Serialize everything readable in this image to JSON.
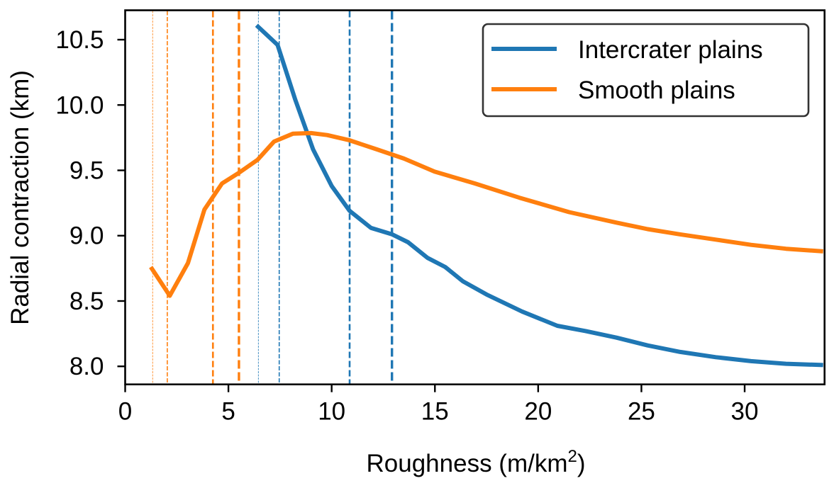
{
  "chart_data": {
    "type": "line",
    "title": "",
    "xlabel": "Roughness (m/km",
    "xlabel_sup": "2",
    "xlabel_close": ")",
    "ylabel": "Radial contraction (km)",
    "xlim": [
      0,
      33.87
    ],
    "ylim": [
      7.862,
      10.725
    ],
    "xticks": [
      0,
      5,
      10,
      15,
      20,
      25,
      30
    ],
    "xtick_labels": [
      "0",
      "5",
      "10",
      "15",
      "20",
      "25",
      "30"
    ],
    "yticks": [
      8.0,
      8.5,
      9.0,
      9.5,
      10.0,
      10.5
    ],
    "ytick_labels": [
      "8.0",
      "8.5",
      "9.0",
      "9.5",
      "10.0",
      "10.5"
    ],
    "grid": false,
    "legend_position": "top-right",
    "series": [
      {
        "name": "Intercrater plains",
        "color": "#1f77b4",
        "x": [
          6.36,
          7.38,
          8.24,
          9.1,
          10.0,
          10.87,
          11.9,
          12.93,
          13.7,
          14.64,
          15.5,
          16.36,
          17.5,
          19.22,
          20.93,
          22.3,
          23.79,
          25.3,
          26.88,
          28.6,
          30.31,
          32.0,
          33.8
        ],
        "y": [
          10.61,
          10.46,
          10.04,
          9.66,
          9.38,
          9.19,
          9.06,
          9.01,
          8.95,
          8.83,
          8.76,
          8.65,
          8.55,
          8.42,
          8.31,
          8.27,
          8.22,
          8.16,
          8.11,
          8.07,
          8.04,
          8.02,
          8.01
        ]
      },
      {
        "name": "Smooth plains",
        "color": "#ff7f0e",
        "x": [
          1.24,
          2.16,
          3.04,
          3.84,
          4.69,
          5.5,
          6.41,
          7.21,
          8.12,
          9.0,
          9.78,
          10.87,
          12.2,
          13.5,
          14.98,
          16.93,
          19.1,
          21.5,
          23.79,
          25.3,
          26.88,
          28.6,
          30.31,
          32.0,
          33.8
        ],
        "y": [
          8.76,
          8.54,
          8.79,
          9.2,
          9.4,
          9.48,
          9.58,
          9.72,
          9.78,
          9.785,
          9.77,
          9.73,
          9.66,
          9.59,
          9.49,
          9.4,
          9.29,
          9.18,
          9.1,
          9.05,
          9.01,
          8.97,
          8.93,
          8.9,
          8.88
        ]
      }
    ],
    "vlines": [
      {
        "x": 1.33,
        "series": "Smooth plains",
        "color": "#ff7f0e",
        "weight": 1
      },
      {
        "x": 2.04,
        "series": "Smooth plains",
        "color": "#ff7f0e",
        "weight": 2
      },
      {
        "x": 4.25,
        "series": "Smooth plains",
        "color": "#ff7f0e",
        "weight": 3
      },
      {
        "x": 5.51,
        "series": "Smooth plains",
        "color": "#ff7f0e",
        "weight": 4
      },
      {
        "x": 6.45,
        "series": "Intercrater plains",
        "color": "#1f77b4",
        "weight": 1
      },
      {
        "x": 7.46,
        "series": "Intercrater plains",
        "color": "#1f77b4",
        "weight": 2
      },
      {
        "x": 10.87,
        "series": "Intercrater plains",
        "color": "#1f77b4",
        "weight": 3
      },
      {
        "x": 12.92,
        "series": "Intercrater plains",
        "color": "#1f77b4",
        "weight": 4
      }
    ]
  }
}
